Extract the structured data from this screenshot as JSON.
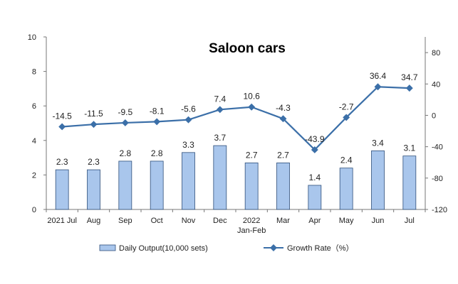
{
  "chart_data": {
    "type": "bar",
    "title": "Saloon cars",
    "categories": [
      {
        "line1": "2021 Jul",
        "line2": ""
      },
      {
        "line1": "Aug",
        "line2": ""
      },
      {
        "line1": "Sep",
        "line2": ""
      },
      {
        "line1": "Oct",
        "line2": ""
      },
      {
        "line1": "Nov",
        "line2": ""
      },
      {
        "line1": "Dec",
        "line2": ""
      },
      {
        "line1": "2022",
        "line2": "Jan-Feb"
      },
      {
        "line1": "Mar",
        "line2": ""
      },
      {
        "line1": "Apr",
        "line2": ""
      },
      {
        "line1": "May",
        "line2": ""
      },
      {
        "line1": "Jun",
        "line2": ""
      },
      {
        "line1": "Jul",
        "line2": ""
      }
    ],
    "series": [
      {
        "name": "Daily Output(10,000 sets)",
        "type": "bar",
        "axis": "left",
        "color": "#a9c6ec",
        "values": [
          2.3,
          2.3,
          2.8,
          2.8,
          3.3,
          3.7,
          2.7,
          2.7,
          1.4,
          2.4,
          3.4,
          3.1
        ],
        "labels": [
          "2.3",
          "2.3",
          "2.8",
          "2.8",
          "3.3",
          "3.7",
          "2.7",
          "2.7",
          "1.4",
          "2.4",
          "3.4",
          "3.1"
        ]
      },
      {
        "name": "Growth Rate（%）",
        "type": "line",
        "axis": "right",
        "color": "#3b6fa8",
        "values": [
          -14.5,
          -11.5,
          -9.5,
          -8.1,
          -5.6,
          7.4,
          10.6,
          -4.3,
          -43.9,
          -2.7,
          36.4,
          34.7
        ],
        "labels": [
          "-14.5",
          "-11.5",
          "-9.5",
          "-8.1",
          "-5.6",
          "7.4",
          "10.6",
          "-4.3",
          "-43.9",
          "-2.7",
          "36.4",
          "34.7"
        ]
      }
    ],
    "y_left": {
      "min": 0,
      "max": 10,
      "ticks": [
        "0",
        "2",
        "4",
        "6",
        "8",
        "10"
      ]
    },
    "y_right": {
      "min": -120,
      "max": 100,
      "ticks": [
        "-120",
        "-80",
        "-40",
        "0",
        "40",
        "80"
      ]
    },
    "legend_position": "bottom",
    "grid": false
  }
}
